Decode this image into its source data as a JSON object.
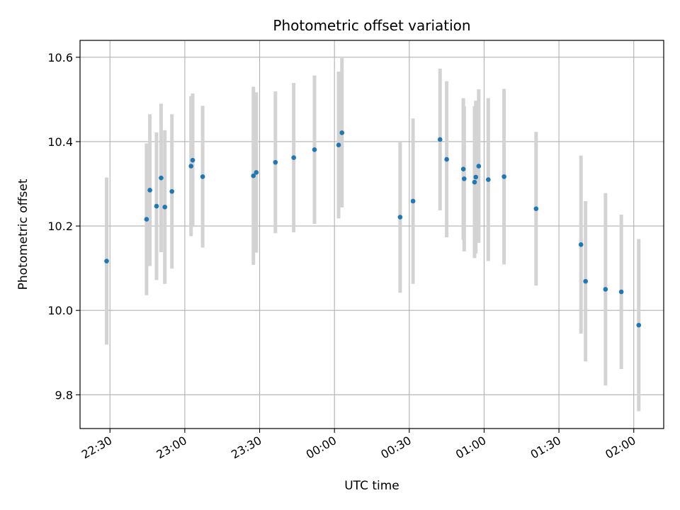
{
  "chart_data": {
    "type": "scatter",
    "title": "Photometric offset variation",
    "xlabel": "UTC time",
    "ylabel": "Photometric offset",
    "xlim": [
      "22:18",
      "02:12"
    ],
    "ylim": [
      9.72,
      10.64
    ],
    "grid": true,
    "x_ticks": [
      "22:30",
      "23:00",
      "23:30",
      "00:00",
      "00:30",
      "01:00",
      "01:30",
      "02:00"
    ],
    "y_ticks": [
      "9.8",
      "10.0",
      "10.2",
      "10.4",
      "10.6"
    ],
    "colors": {
      "point": "#1f77b4",
      "errorbar": "#d3d3d3",
      "grid": "#b0b0b0"
    },
    "points": [
      {
        "t": "22:28:40",
        "y": 10.117,
        "err": 0.198
      },
      {
        "t": "22:44:40",
        "y": 10.216,
        "err": 0.18
      },
      {
        "t": "22:46:00",
        "y": 10.285,
        "err": 0.18
      },
      {
        "t": "22:48:40",
        "y": 10.247,
        "err": 0.175
      },
      {
        "t": "22:50:30",
        "y": 10.314,
        "err": 0.176
      },
      {
        "t": "22:52:00",
        "y": 10.245,
        "err": 0.182
      },
      {
        "t": "22:54:50",
        "y": 10.282,
        "err": 0.183
      },
      {
        "t": "23:02:30",
        "y": 10.342,
        "err": 0.166
      },
      {
        "t": "23:03:10",
        "y": 10.356,
        "err": 0.158
      },
      {
        "t": "23:07:10",
        "y": 10.317,
        "err": 0.168
      },
      {
        "t": "23:27:30",
        "y": 10.319,
        "err": 0.211
      },
      {
        "t": "23:28:40",
        "y": 10.327,
        "err": 0.19
      },
      {
        "t": "23:36:20",
        "y": 10.351,
        "err": 0.168
      },
      {
        "t": "23:43:40",
        "y": 10.362,
        "err": 0.177
      },
      {
        "t": "23:52:00",
        "y": 10.381,
        "err": 0.176
      },
      {
        "t": "00:01:40",
        "y": 10.392,
        "err": 0.174
      },
      {
        "t": "00:03:00",
        "y": 10.421,
        "err": 0.177
      },
      {
        "t": "00:26:20",
        "y": 10.221,
        "err": 0.179
      },
      {
        "t": "00:31:30",
        "y": 10.259,
        "err": 0.196
      },
      {
        "t": "00:42:20",
        "y": 10.405,
        "err": 0.168
      },
      {
        "t": "00:45:00",
        "y": 10.358,
        "err": 0.185
      },
      {
        "t": "00:51:40",
        "y": 10.335,
        "err": 0.168
      },
      {
        "t": "00:52:00",
        "y": 10.312,
        "err": 0.172
      },
      {
        "t": "00:56:10",
        "y": 10.304,
        "err": 0.18
      },
      {
        "t": "00:56:40",
        "y": 10.316,
        "err": 0.181
      },
      {
        "t": "00:57:50",
        "y": 10.342,
        "err": 0.182
      },
      {
        "t": "01:01:40",
        "y": 10.31,
        "err": 0.193
      },
      {
        "t": "01:08:00",
        "y": 10.317,
        "err": 0.208
      },
      {
        "t": "01:20:50",
        "y": 10.241,
        "err": 0.182
      },
      {
        "t": "01:38:50",
        "y": 10.156,
        "err": 0.211
      },
      {
        "t": "01:40:40",
        "y": 10.069,
        "err": 0.19
      },
      {
        "t": "01:48:40",
        "y": 10.05,
        "err": 0.228
      },
      {
        "t": "01:55:00",
        "y": 10.044,
        "err": 0.183
      },
      {
        "t": "02:02:00",
        "y": 9.965,
        "err": 0.204
      }
    ]
  }
}
